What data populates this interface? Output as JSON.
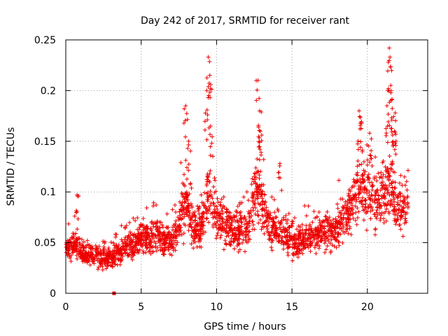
{
  "chart_data": {
    "type": "scatter",
    "title": "Day 242 of 2017, SRMTID for receiver rant",
    "xlabel": "GPS time / hours",
    "ylabel": "SRMTID / TECUs",
    "xlim": [
      0,
      24
    ],
    "ylim": [
      0,
      0.25
    ],
    "xticks": [
      0,
      5,
      10,
      15,
      20
    ],
    "yticks": [
      0,
      0.05,
      0.1,
      0.15,
      0.2,
      0.25
    ],
    "xtick_labels": [
      "0",
      "5",
      "10",
      "15",
      "20"
    ],
    "ytick_labels": [
      "0",
      "0.05",
      "0.1",
      "0.15",
      "0.2",
      "0.25"
    ],
    "grid": true,
    "marker": "plus",
    "color": "#ee0000",
    "trend": [
      [
        0.0,
        0.045
      ],
      [
        0.5,
        0.05
      ],
      [
        1.0,
        0.04
      ],
      [
        2.0,
        0.035
      ],
      [
        3.0,
        0.035
      ],
      [
        4.0,
        0.045
      ],
      [
        5.0,
        0.055
      ],
      [
        6.0,
        0.055
      ],
      [
        7.0,
        0.05
      ],
      [
        7.5,
        0.065
      ],
      [
        8.0,
        0.09
      ],
      [
        8.5,
        0.06
      ],
      [
        9.0,
        0.065
      ],
      [
        9.5,
        0.1
      ],
      [
        10.0,
        0.075
      ],
      [
        11.0,
        0.06
      ],
      [
        12.0,
        0.065
      ],
      [
        12.7,
        0.1
      ],
      [
        13.0,
        0.09
      ],
      [
        13.5,
        0.065
      ],
      [
        14.5,
        0.06
      ],
      [
        15.0,
        0.05
      ],
      [
        16.0,
        0.055
      ],
      [
        17.0,
        0.06
      ],
      [
        18.0,
        0.06
      ],
      [
        18.5,
        0.075
      ],
      [
        19.0,
        0.09
      ],
      [
        19.5,
        0.105
      ],
      [
        20.0,
        0.1
      ],
      [
        20.5,
        0.085
      ],
      [
        21.0,
        0.1
      ],
      [
        21.5,
        0.105
      ],
      [
        22.0,
        0.08
      ],
      [
        22.7,
        0.085
      ]
    ],
    "peaks": [
      [
        7.95,
        0.185
      ],
      [
        8.15,
        0.15
      ],
      [
        9.45,
        0.233
      ],
      [
        9.55,
        0.215
      ],
      [
        9.35,
        0.2
      ],
      [
        9.6,
        0.165
      ],
      [
        12.75,
        0.21
      ],
      [
        12.85,
        0.18
      ],
      [
        12.9,
        0.16
      ],
      [
        14.2,
        0.128
      ],
      [
        19.45,
        0.18
      ],
      [
        19.6,
        0.168
      ],
      [
        21.3,
        0.185
      ],
      [
        21.45,
        0.242
      ],
      [
        21.5,
        0.233
      ],
      [
        21.55,
        0.205
      ],
      [
        21.55,
        0.19
      ],
      [
        21.85,
        0.178
      ],
      [
        21.8,
        0.16
      ],
      [
        20.15,
        0.158
      ],
      [
        0.75,
        0.097
      ]
    ],
    "outlier": [
      [
        3.2,
        0.0
      ]
    ]
  }
}
